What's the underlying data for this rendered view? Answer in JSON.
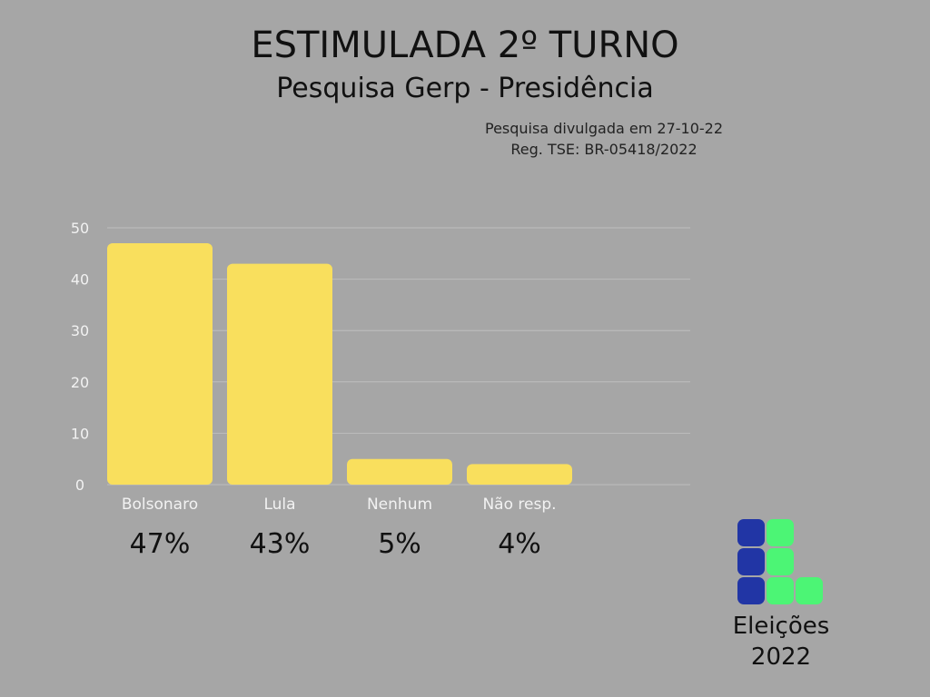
{
  "header": {
    "title": "ESTIMULADA 2º TURNO",
    "subtitle": "Pesquisa Gerp - Presidência",
    "note_line1": "Pesquisa divulgada em 27-10-22",
    "note_line2": "Reg. TSE: BR-05418/2022"
  },
  "chart_data": {
    "type": "bar",
    "categories": [
      "Bolsonaro",
      "Lula",
      "Nenhum",
      "Não resp."
    ],
    "values": [
      47,
      43,
      5,
      4
    ],
    "value_labels": [
      "47%",
      "43%",
      "5%",
      "4%"
    ],
    "ylim": [
      0,
      50
    ],
    "y_ticks": [
      0,
      10,
      20,
      30,
      40,
      50
    ],
    "grid": true,
    "xlabel": "",
    "ylabel": ""
  },
  "logo": {
    "line1": "Eleições",
    "line2": "2022"
  },
  "colors": {
    "background": "#a6a6a6",
    "bar": "#f9df5d",
    "gridline": "#bdbdbd",
    "tick_text": "#f2f2f2",
    "logo_blue": "#2135a5",
    "logo_green": "#4cf575"
  }
}
